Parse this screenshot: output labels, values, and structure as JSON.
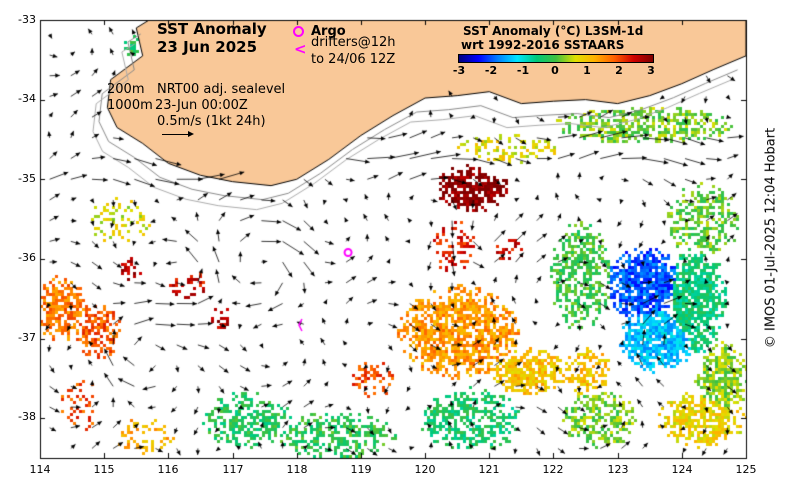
{
  "map": {
    "title_line1": "SST Anomaly",
    "title_line2": "23 Jun 2025",
    "legend": {
      "argo_label": "Argo",
      "drifter_symbol": "<",
      "drifter_line1": "drifters@12h",
      "drifter_line2": "to 24/06 12Z"
    },
    "contours": {
      "label_200": "200m",
      "label_1000": "1000m",
      "sealevel": "NRT00 adj. sealevel",
      "date": "23-Jun 00:00Z",
      "scale_label": "0.5m/s (1kt 24h)"
    },
    "colorbar": {
      "title_line1": "SST Anomaly (°C) L3SM-1d",
      "title_line2": "wrt 1992-2016 SSTAARS",
      "min": -3,
      "max": 3,
      "ticks": [
        "-3",
        "-2",
        "-1",
        "0",
        "1",
        "2",
        "3"
      ]
    },
    "x_ticks": [
      "114",
      "115",
      "116",
      "117",
      "118",
      "119",
      "120",
      "121",
      "122",
      "123",
      "124",
      "125"
    ],
    "y_ticks": [
      "-33",
      "-34",
      "-35",
      "-36",
      "-37",
      "-38"
    ],
    "lon_range": [
      114,
      125
    ],
    "lat_range": [
      -38.5,
      -33
    ],
    "copyright": "© IMOS 01-Jul-2025 12:04 Hobart",
    "colors": {
      "land": "#f9c898",
      "argo": "#ff00ff",
      "contour_200": "#888888",
      "contour_1000": "#aaaaaa"
    },
    "argo_float": {
      "lon": 118.8,
      "lat": -35.92
    },
    "drifter": {
      "lon": 118.05,
      "lat": -36.83
    },
    "anomaly_patches": [
      {
        "lon": 114.3,
        "lat": -36.6,
        "sx": 0.35,
        "sy": 0.35,
        "v": 1.6,
        "d": 0.65
      },
      {
        "lon": 114.9,
        "lat": -36.9,
        "sx": 0.3,
        "sy": 0.3,
        "v": 1.8,
        "d": 0.6
      },
      {
        "lon": 115.2,
        "lat": -35.5,
        "sx": 0.45,
        "sy": 0.25,
        "v": 0.6,
        "d": 0.25
      },
      {
        "lon": 114.6,
        "lat": -37.8,
        "sx": 0.25,
        "sy": 0.3,
        "v": 1.9,
        "d": 0.25
      },
      {
        "lon": 115.4,
        "lat": -36.1,
        "sx": 0.15,
        "sy": 0.15,
        "v": 2.6,
        "d": 0.4
      },
      {
        "lon": 116.3,
        "lat": -36.3,
        "sx": 0.25,
        "sy": 0.15,
        "v": 2.4,
        "d": 0.3
      },
      {
        "lon": 116.8,
        "lat": -36.7,
        "sx": 0.15,
        "sy": 0.15,
        "v": 2.6,
        "d": 0.4
      },
      {
        "lon": 120.7,
        "lat": -35.1,
        "sx": 0.5,
        "sy": 0.25,
        "v": 2.9,
        "d": 0.8
      },
      {
        "lon": 120.4,
        "lat": -35.8,
        "sx": 0.3,
        "sy": 0.3,
        "v": 2.2,
        "d": 0.3
      },
      {
        "lon": 121.3,
        "lat": -35.9,
        "sx": 0.2,
        "sy": 0.2,
        "v": 2.4,
        "d": 0.3
      },
      {
        "lon": 120.5,
        "lat": -36.9,
        "sx": 0.8,
        "sy": 0.5,
        "v": 1.4,
        "d": 0.75
      },
      {
        "lon": 121.6,
        "lat": -37.4,
        "sx": 0.5,
        "sy": 0.25,
        "v": 1.0,
        "d": 0.75
      },
      {
        "lon": 122.5,
        "lat": -37.4,
        "sx": 0.35,
        "sy": 0.25,
        "v": 1.0,
        "d": 0.55
      },
      {
        "lon": 122.4,
        "lat": -36.2,
        "sx": 0.4,
        "sy": 0.6,
        "v": -0.1,
        "d": 0.6
      },
      {
        "lon": 123.4,
        "lat": -36.3,
        "sx": 0.5,
        "sy": 0.4,
        "v": -2.0,
        "d": 0.9
      },
      {
        "lon": 123.6,
        "lat": -37.0,
        "sx": 0.5,
        "sy": 0.35,
        "v": -1.4,
        "d": 0.9
      },
      {
        "lon": 124.2,
        "lat": -36.5,
        "sx": 0.4,
        "sy": 0.6,
        "v": -0.5,
        "d": 0.85
      },
      {
        "lon": 124.6,
        "lat": -37.5,
        "sx": 0.35,
        "sy": 0.4,
        "v": 0.3,
        "d": 0.75
      },
      {
        "lon": 124.3,
        "lat": -35.5,
        "sx": 0.5,
        "sy": 0.4,
        "v": 0.1,
        "d": 0.5
      },
      {
        "lon": 123.4,
        "lat": -34.3,
        "sx": 1.2,
        "sy": 0.2,
        "v": 0.2,
        "d": 0.6
      },
      {
        "lon": 121.3,
        "lat": -34.6,
        "sx": 0.7,
        "sy": 0.15,
        "v": 0.7,
        "d": 0.45
      },
      {
        "lon": 117.2,
        "lat": -38.0,
        "sx": 0.6,
        "sy": 0.3,
        "v": -0.3,
        "d": 0.55
      },
      {
        "lon": 118.6,
        "lat": -38.2,
        "sx": 0.8,
        "sy": 0.25,
        "v": -0.2,
        "d": 0.55
      },
      {
        "lon": 120.7,
        "lat": -38.0,
        "sx": 0.7,
        "sy": 0.35,
        "v": -0.4,
        "d": 0.55
      },
      {
        "lon": 122.7,
        "lat": -38.0,
        "sx": 0.5,
        "sy": 0.3,
        "v": 0.2,
        "d": 0.6
      },
      {
        "lon": 124.3,
        "lat": -38.0,
        "sx": 0.6,
        "sy": 0.3,
        "v": 0.8,
        "d": 0.65
      },
      {
        "lon": 115.6,
        "lat": -38.2,
        "sx": 0.4,
        "sy": 0.2,
        "v": 1.2,
        "d": 0.25
      },
      {
        "lon": 119.2,
        "lat": -37.5,
        "sx": 0.3,
        "sy": 0.2,
        "v": 1.9,
        "d": 0.35
      },
      {
        "lon": 115.4,
        "lat": -33.3,
        "sx": 0.12,
        "sy": 0.12,
        "v": -0.3,
        "d": 0.55
      }
    ],
    "eddies": [
      {
        "lon": 116.3,
        "lat": -36.2,
        "r": 0.45,
        "dir": 1
      },
      {
        "lon": 117.6,
        "lat": -36.1,
        "r": 0.55,
        "dir": -1
      },
      {
        "lon": 120.8,
        "lat": -35.7,
        "r": 0.45,
        "dir": 1
      },
      {
        "lon": 123.8,
        "lat": -36.9,
        "r": 0.55,
        "dir": -1
      },
      {
        "lon": 115.5,
        "lat": -37.2,
        "r": 0.5,
        "dir": -1
      }
    ]
  }
}
